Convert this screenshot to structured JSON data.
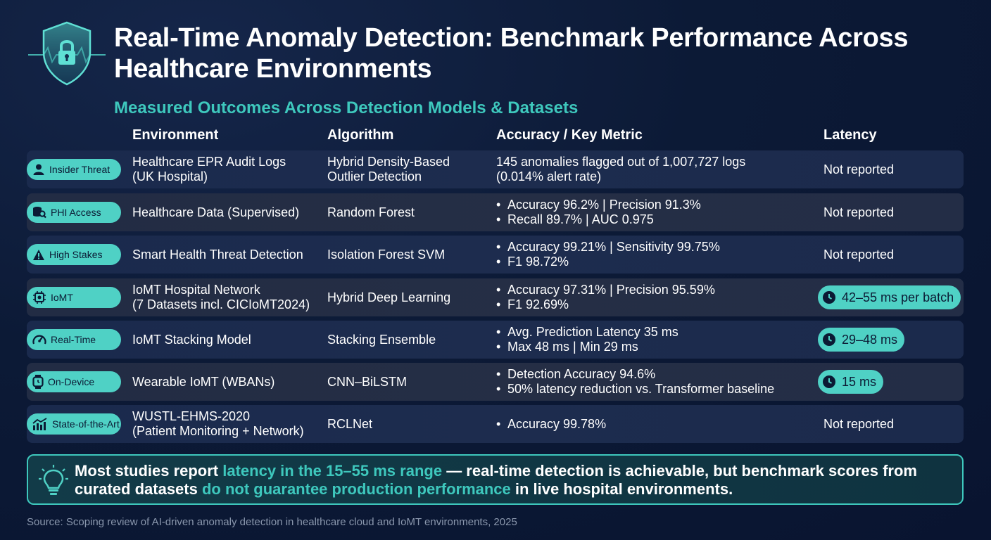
{
  "header": {
    "title": "Real-Time Anomaly Detection: Benchmark Performance Across Healthcare Environments",
    "subtitle": "Measured Outcomes Across Detection Models & Datasets",
    "logo_icon": "shield-lock-heartbeat-icon"
  },
  "table": {
    "columns": {
      "environment": "Environment",
      "algorithm": "Algorithm",
      "accuracy": "Accuracy / Key Metric",
      "latency": "Latency"
    },
    "rows": [
      {
        "category": "Insider Threat",
        "icon": "user-icon",
        "env_1": "Healthcare EPR Audit Logs",
        "env_2": "(UK Hospital)",
        "alg_1": "Hybrid Density-Based",
        "alg_2": "Outlier Detection",
        "metric_1": "145 anomalies flagged out of 1,007,727 logs",
        "metric_2": "(0.014% alert rate)",
        "latency": "Not reported"
      },
      {
        "category": "PHI Access",
        "icon": "database-search-icon",
        "env_1": "Healthcare Data (Supervised)",
        "alg_1": "Random Forest",
        "metric_1": "Accuracy 96.2% | Precision 91.3%",
        "metric_2": "Recall 89.7% | AUC 0.975",
        "latency": "Not reported"
      },
      {
        "category": "High Stakes",
        "icon": "warning-icon",
        "env_1": "Smart Health Threat Detection",
        "alg_1": "Isolation Forest SVM",
        "metric_1": "Accuracy 99.21% | Sensitivity 99.75%",
        "metric_2": "F1 98.72%",
        "latency": "Not reported"
      },
      {
        "category": "IoMT",
        "icon": "chip-icon",
        "env_1": "IoMT Hospital Network",
        "env_2": "(7 Datasets incl. CICIoMT2024)",
        "alg_1": "Hybrid Deep Learning",
        "metric_1": "Accuracy 97.31% | Precision 95.59%",
        "metric_2": "F1 92.69%",
        "latency": "42–55 ms per batch"
      },
      {
        "category": "Real-Time",
        "icon": "speedometer-icon",
        "env_1": "IoMT Stacking Model",
        "alg_1": "Stacking Ensemble",
        "metric_1": "Avg. Prediction Latency 35 ms",
        "metric_2": "Max 48 ms | Min 29 ms",
        "latency": "29–48 ms"
      },
      {
        "category": "On-Device",
        "icon": "smartwatch-icon",
        "env_1": "Wearable IoMT (WBANs)",
        "alg_1": "CNN–BiLSTM",
        "metric_1": "Detection Accuracy 94.6%",
        "metric_2": "50% latency reduction vs. Transformer baseline",
        "latency": "15 ms"
      },
      {
        "category": "State-of-the-Art",
        "icon": "trend-chart-icon",
        "env_1": "WUSTL-EHMS-2020",
        "env_2": "(Patient Monitoring + Network)",
        "alg_1": "RCLNet",
        "metric_1": "Accuracy 99.78%",
        "latency": "Not reported"
      }
    ]
  },
  "callout": {
    "icon": "lightbulb-icon",
    "part_1": "Most studies report ",
    "highlight_1": "latency in the 15–55 ms range",
    "part_2": " — real-time detection is achievable, but benchmark scores from curated datasets ",
    "highlight_2": "do not guarantee production performance",
    "part_3": " in live hospital environments."
  },
  "source": "Source: Scoping review of AI-driven anomaly detection in healthcare cloud and IoMT environments, 2025",
  "colors": {
    "background": "#0c1a36",
    "accent": "#3ec8bd",
    "pill": "#4fd1c5",
    "row": "#1d2c4e"
  }
}
